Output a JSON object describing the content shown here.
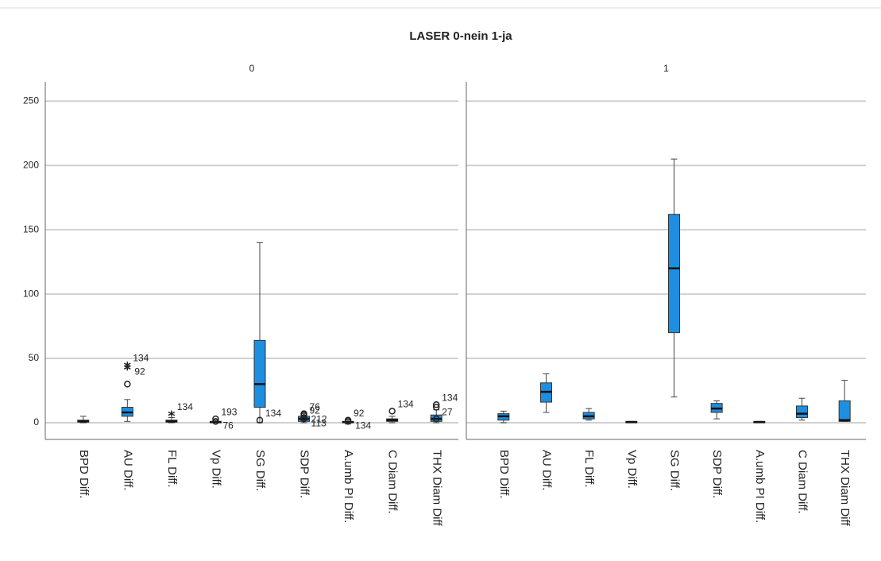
{
  "title": "LASER 0-nein 1-ja",
  "chart_data": [
    {
      "type": "box",
      "title": "0",
      "ylim": [
        -13,
        265
      ],
      "yticks": [
        0,
        50,
        100,
        150,
        200,
        250
      ],
      "grid": true,
      "color": "#1e8fe0",
      "categories": [
        "BPD Diff.",
        "AU Diff.",
        "FL Diff.",
        "Vp Diff.",
        "SG Diff.",
        "SDP Diff.",
        "A.umb PI Diff.",
        "C Diam Diff.",
        "THX Diam Diff"
      ],
      "boxes": [
        {
          "min": 0,
          "q1": 0.5,
          "median": 1,
          "q3": 2,
          "max": 5,
          "outliers": []
        },
        {
          "min": 1,
          "q1": 5,
          "median": 8,
          "q3": 12,
          "max": 18,
          "outliers": [
            {
              "value": 45,
              "kind": "extreme",
              "label": "134"
            },
            {
              "value": 43,
              "kind": "extreme",
              "label": "92"
            },
            {
              "value": 30,
              "kind": "outlier"
            }
          ]
        },
        {
          "min": 0,
          "q1": 0.5,
          "median": 1,
          "q3": 2,
          "max": 4,
          "outliers": [
            {
              "value": 7,
              "kind": "extreme",
              "label": "134"
            }
          ]
        },
        {
          "min": 0,
          "q1": 0,
          "median": 0.5,
          "q3": 1,
          "max": 2,
          "outliers": [
            {
              "value": 3,
              "kind": "outlier",
              "label": "193"
            },
            {
              "value": 1,
              "kind": "outlier",
              "label": "76"
            }
          ]
        },
        {
          "min": 0,
          "q1": 12,
          "median": 30,
          "q3": 64,
          "max": 140,
          "outliers": [
            {
              "value": 2,
              "kind": "outlier",
              "label": "134"
            }
          ]
        },
        {
          "min": 0,
          "q1": 1,
          "median": 3,
          "q3": 5,
          "max": 7,
          "outliers": [
            {
              "value": 7,
              "kind": "outlier",
              "label": "76"
            },
            {
              "value": 6,
              "kind": "outlier",
              "label": "212"
            },
            {
              "value": 4,
              "kind": "outlier",
              "label": "92"
            },
            {
              "value": 3,
              "kind": "outlier",
              "label": "113"
            }
          ]
        },
        {
          "min": -1,
          "q1": 0,
          "median": 0.5,
          "q3": 1,
          "max": 2,
          "outliers": [
            {
              "value": 2,
              "kind": "outlier",
              "label": "92"
            },
            {
              "value": 1,
              "kind": "outlier",
              "label": "134"
            }
          ]
        },
        {
          "min": 0,
          "q1": 1,
          "median": 2,
          "q3": 3,
          "max": 5,
          "outliers": [
            {
              "value": 9,
              "kind": "outlier",
              "label": "134"
            }
          ]
        },
        {
          "min": 0,
          "q1": 1,
          "median": 3,
          "q3": 6,
          "max": 10,
          "outliers": [
            {
              "value": 14,
              "kind": "outlier",
              "label": "134"
            },
            {
              "value": 12,
              "kind": "outlier"
            },
            {
              "value": 3,
              "kind": "outlier",
              "label": "27"
            }
          ]
        }
      ]
    },
    {
      "type": "box",
      "title": "1",
      "ylim": [
        -13,
        265
      ],
      "yticks": [
        0,
        50,
        100,
        150,
        200,
        250
      ],
      "grid": true,
      "color": "#1e8fe0",
      "categories": [
        "BPD Diff.",
        "AU Diff.",
        "FL Diff.",
        "Vp Diff.",
        "SG Diff.",
        "SDP Diff.",
        "A.umb PI Diff.",
        "C Diam Diff.",
        "THX Diam Diff"
      ],
      "boxes": [
        {
          "min": 0,
          "q1": 2,
          "median": 5,
          "q3": 7,
          "max": 9,
          "outliers": []
        },
        {
          "min": 8,
          "q1": 16,
          "median": 24,
          "q3": 31,
          "max": 38,
          "outliers": []
        },
        {
          "min": 2,
          "q1": 3,
          "median": 5,
          "q3": 8,
          "max": 11,
          "outliers": []
        },
        {
          "min": 0,
          "q1": 0,
          "median": 0.5,
          "q3": 1,
          "max": 1,
          "outliers": []
        },
        {
          "min": 20,
          "q1": 70,
          "median": 120,
          "q3": 162,
          "max": 205,
          "outliers": []
        },
        {
          "min": 3,
          "q1": 8,
          "median": 11,
          "q3": 15,
          "max": 17,
          "outliers": []
        },
        {
          "min": 0,
          "q1": 0,
          "median": 0.5,
          "q3": 1,
          "max": 1,
          "outliers": []
        },
        {
          "min": 2,
          "q1": 4,
          "median": 7,
          "q3": 13,
          "max": 19,
          "outliers": []
        },
        {
          "min": 1,
          "q1": 1,
          "median": 2,
          "q3": 17,
          "max": 33,
          "outliers": []
        }
      ]
    }
  ]
}
